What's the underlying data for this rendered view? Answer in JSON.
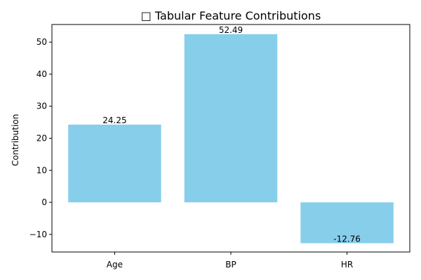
{
  "chart_data": {
    "type": "bar",
    "title": "□ Tabular Feature Contributions",
    "xlabel": "",
    "ylabel": "Contribution",
    "categories": [
      "Age",
      "BP",
      "HR"
    ],
    "values": [
      24.25,
      52.49,
      -12.76
    ],
    "value_labels": [
      "24.25",
      "52.49",
      "-12.76"
    ],
    "ylim": [
      -15.5,
      55.5
    ],
    "yticks": [
      -10,
      0,
      10,
      20,
      30,
      40,
      50
    ],
    "ytick_labels": [
      "−10",
      "0",
      "10",
      "20",
      "30",
      "40",
      "50"
    ],
    "bar_color": "#87CEEB",
    "grid": false,
    "legend": "none"
  }
}
